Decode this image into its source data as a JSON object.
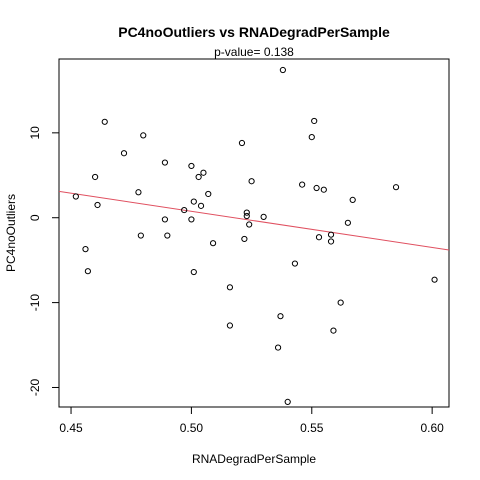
{
  "chart_data": {
    "type": "scatter",
    "title": "PC4noOutliers  vs  RNADegradPerSample",
    "subtitle": "p-value= 0.138",
    "xlabel": "RNADegradPerSample",
    "ylabel": "PC4noOutliers",
    "xlim": [
      0.445,
      0.607
    ],
    "ylim": [
      -22.3,
      18.7
    ],
    "xticks": [
      0.45,
      0.5,
      0.55,
      0.6
    ],
    "xtick_labels": [
      "0.45",
      "0.50",
      "0.55",
      "0.60"
    ],
    "yticks": [
      -20,
      -10,
      0,
      10
    ],
    "ytick_labels": [
      "-20",
      "-10",
      "0",
      "10"
    ],
    "grid": false,
    "points": [
      {
        "x": 0.452,
        "y": 2.5
      },
      {
        "x": 0.456,
        "y": -3.7
      },
      {
        "x": 0.457,
        "y": -6.3
      },
      {
        "x": 0.46,
        "y": 4.8
      },
      {
        "x": 0.461,
        "y": 1.5
      },
      {
        "x": 0.464,
        "y": 11.3
      },
      {
        "x": 0.472,
        "y": 7.6
      },
      {
        "x": 0.478,
        "y": 3.0
      },
      {
        "x": 0.479,
        "y": -2.1
      },
      {
        "x": 0.48,
        "y": 9.7
      },
      {
        "x": 0.489,
        "y": 6.5
      },
      {
        "x": 0.489,
        "y": -0.2
      },
      {
        "x": 0.49,
        "y": -2.1
      },
      {
        "x": 0.497,
        "y": 0.9
      },
      {
        "x": 0.5,
        "y": 6.1
      },
      {
        "x": 0.5,
        "y": -0.2
      },
      {
        "x": 0.501,
        "y": -6.4
      },
      {
        "x": 0.501,
        "y": 1.9
      },
      {
        "x": 0.503,
        "y": 4.8
      },
      {
        "x": 0.504,
        "y": 1.4
      },
      {
        "x": 0.505,
        "y": 5.3
      },
      {
        "x": 0.507,
        "y": 2.8
      },
      {
        "x": 0.509,
        "y": -3.0
      },
      {
        "x": 0.516,
        "y": -8.2
      },
      {
        "x": 0.516,
        "y": -12.7
      },
      {
        "x": 0.521,
        "y": 8.8
      },
      {
        "x": 0.522,
        "y": -2.5
      },
      {
        "x": 0.523,
        "y": 0.6
      },
      {
        "x": 0.523,
        "y": 0.2
      },
      {
        "x": 0.524,
        "y": -0.8
      },
      {
        "x": 0.525,
        "y": 4.3
      },
      {
        "x": 0.53,
        "y": 0.1
      },
      {
        "x": 0.536,
        "y": -15.3
      },
      {
        "x": 0.537,
        "y": -11.6
      },
      {
        "x": 0.538,
        "y": 17.4
      },
      {
        "x": 0.54,
        "y": -21.7
      },
      {
        "x": 0.543,
        "y": -5.4
      },
      {
        "x": 0.546,
        "y": 3.9
      },
      {
        "x": 0.55,
        "y": 9.5
      },
      {
        "x": 0.551,
        "y": 11.4
      },
      {
        "x": 0.552,
        "y": 3.5
      },
      {
        "x": 0.553,
        "y": -2.3
      },
      {
        "x": 0.555,
        "y": 3.3
      },
      {
        "x": 0.558,
        "y": -2.0
      },
      {
        "x": 0.558,
        "y": -2.8
      },
      {
        "x": 0.559,
        "y": -13.3
      },
      {
        "x": 0.562,
        "y": -10.0
      },
      {
        "x": 0.565,
        "y": -0.6
      },
      {
        "x": 0.567,
        "y": 2.1
      },
      {
        "x": 0.585,
        "y": 3.6
      },
      {
        "x": 0.601,
        "y": -7.3
      }
    ],
    "fit_line": {
      "x": [
        0.445,
        0.607
      ],
      "y": [
        3.1,
        -3.8
      ],
      "color": "#e05060"
    }
  }
}
